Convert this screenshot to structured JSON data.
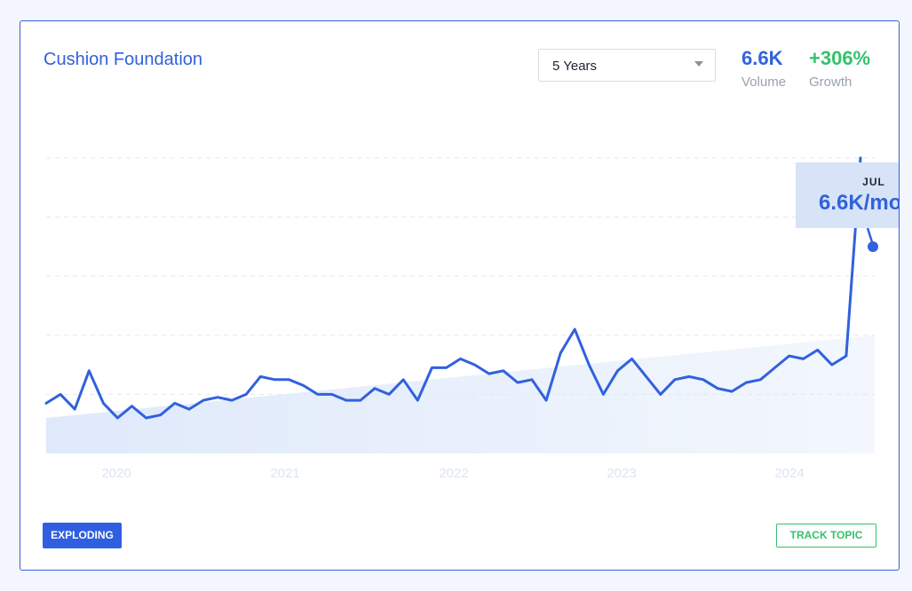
{
  "title": "Cushion Foundation",
  "dropdown": {
    "selected": "5 Years"
  },
  "stats": {
    "volume": {
      "value": "6.6K",
      "label": "Volume"
    },
    "growth": {
      "value": "+306%",
      "label": "Growth"
    }
  },
  "tooltip": {
    "month": "JUL",
    "value": "6.6K/mo"
  },
  "badge": "EXPLODING",
  "track_button": "TRACK TOPIC",
  "colors": {
    "accent": "#3161dd",
    "growth": "#34c26b",
    "trend_fill": "#dde8fa",
    "tick_label": "#dce3f2"
  },
  "chart_data": {
    "type": "line",
    "x_ticks": [
      "2020",
      "2021",
      "2022",
      "2023",
      "2024"
    ],
    "series": [
      {
        "values": [
          0.17,
          0.2,
          0.15,
          0.28,
          0.17,
          0.12,
          0.16,
          0.12,
          0.13,
          0.17,
          0.15,
          0.18,
          0.19,
          0.18,
          0.2,
          0.26,
          0.25,
          0.25,
          0.23,
          0.2,
          0.2,
          0.18,
          0.18,
          0.22,
          0.2,
          0.25,
          0.18,
          0.29,
          0.29,
          0.32,
          0.3,
          0.27,
          0.28,
          0.24,
          0.25,
          0.18,
          0.34,
          0.42,
          0.3,
          0.2,
          0.28,
          0.32,
          0.26,
          0.2,
          0.25,
          0.26,
          0.25,
          0.22,
          0.21,
          0.24,
          0.25,
          0.29,
          0.33,
          0.32,
          0.35,
          0.3,
          0.33,
          1.0
        ]
      }
    ],
    "trend": {
      "start": 0.12,
      "end": 0.4
    },
    "ylim": [
      0,
      1
    ],
    "grid": true,
    "legend": "none"
  }
}
